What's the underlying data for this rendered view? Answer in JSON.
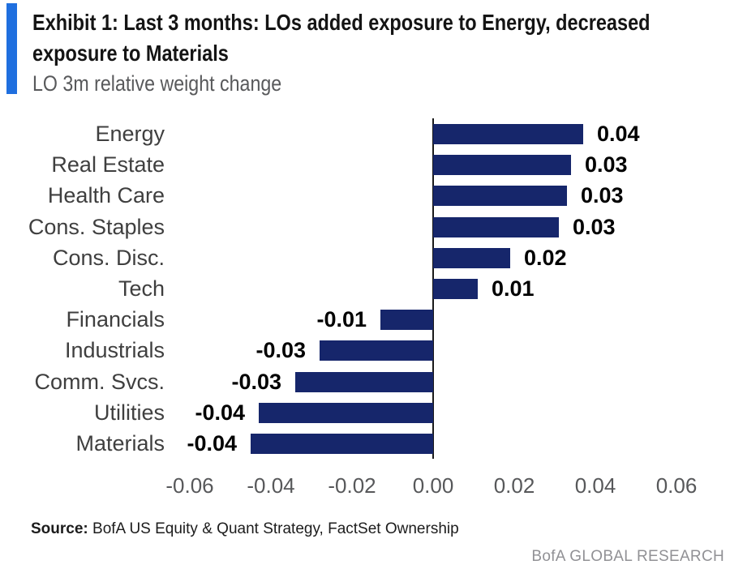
{
  "header": {
    "title_line1": "Exhibit 1: Last 3 months: LOs added exposure to Energy, decreased",
    "title_line2": "exposure to Materials",
    "subtitle": "LO 3m relative weight change"
  },
  "chart_data": {
    "type": "bar",
    "orientation": "horizontal",
    "title": "LO 3m relative weight change",
    "categories": [
      "Energy",
      "Real Estate",
      "Health Care",
      "Cons. Staples",
      "Cons. Disc.",
      "Tech",
      "Financials",
      "Industrials",
      "Comm. Svcs.",
      "Utilities",
      "Materials"
    ],
    "values": [
      0.037,
      0.034,
      0.033,
      0.031,
      0.019,
      0.011,
      -0.013,
      -0.028,
      -0.034,
      -0.043,
      -0.045
    ],
    "value_labels": [
      "0.04",
      "0.03",
      "0.03",
      "0.03",
      "0.02",
      "0.01",
      "-0.01",
      "-0.03",
      "-0.03",
      "-0.04",
      "-0.04"
    ],
    "x_ticks": [
      {
        "value": -0.06,
        "label": "-0.06"
      },
      {
        "value": -0.04,
        "label": "-0.04"
      },
      {
        "value": -0.02,
        "label": "-0.02"
      },
      {
        "value": 0.0,
        "label": "0.00"
      },
      {
        "value": 0.02,
        "label": "0.02"
      },
      {
        "value": 0.04,
        "label": "0.04"
      },
      {
        "value": 0.06,
        "label": "0.06"
      }
    ],
    "xlim": [
      -0.06,
      0.06
    ],
    "grid": false,
    "legend": false,
    "bar_color": "#16266B"
  },
  "footer": {
    "source_label": "Source:",
    "source_text": " BofA US Equity & Quant Strategy, FactSet Ownership",
    "brand": "BofA GLOBAL RESEARCH"
  },
  "colors": {
    "accent_bar": "#1F6FDF",
    "bar": "#16266B",
    "axis": "#1a1a1a",
    "subtitle_text": "#58595B",
    "brand_text": "#919195"
  }
}
